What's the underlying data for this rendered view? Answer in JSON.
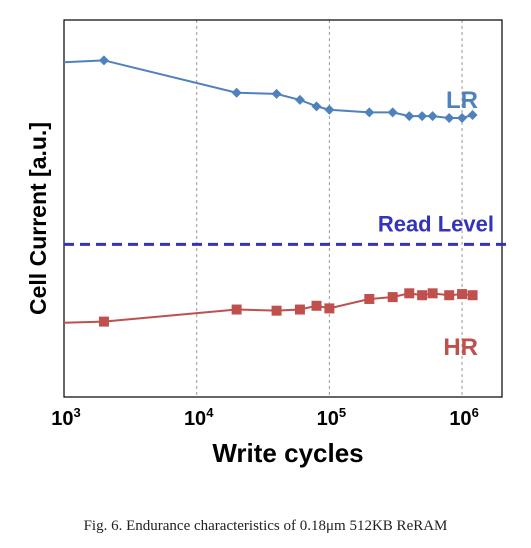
{
  "chart_data": {
    "type": "line",
    "xlabel": "Write cycles",
    "ylabel": "Cell Current [a.u.]",
    "x_scale": "log",
    "xlim": [
      1000,
      2000000
    ],
    "ylim": [
      0,
      1
    ],
    "xticks": [
      {
        "value": 1000,
        "base": "10",
        "exp": "3"
      },
      {
        "value": 10000,
        "base": "10",
        "exp": "4"
      },
      {
        "value": 100000,
        "base": "10",
        "exp": "5"
      },
      {
        "value": 1000000,
        "base": "10",
        "exp": "6"
      }
    ],
    "grid": "vertical dashed at decades",
    "series": [
      {
        "name": "LR",
        "color": "#4f81bd",
        "marker": "diamond",
        "points": [
          [
            1000,
            0.888
          ],
          [
            2000,
            0.893
          ],
          [
            20000,
            0.807
          ],
          [
            40000,
            0.804
          ],
          [
            60000,
            0.788
          ],
          [
            80000,
            0.771
          ],
          [
            100000,
            0.762
          ],
          [
            200000,
            0.755
          ],
          [
            300000,
            0.755
          ],
          [
            400000,
            0.745
          ],
          [
            500000,
            0.745
          ],
          [
            600000,
            0.745
          ],
          [
            800000,
            0.74
          ],
          [
            1000000,
            0.74
          ],
          [
            1200000,
            0.748
          ]
        ]
      },
      {
        "name": "HR",
        "color": "#c0504d",
        "marker": "square",
        "points": [
          [
            1000,
            0.197
          ],
          [
            2000,
            0.2
          ],
          [
            20000,
            0.232
          ],
          [
            40000,
            0.229
          ],
          [
            60000,
            0.232
          ],
          [
            80000,
            0.242
          ],
          [
            100000,
            0.235
          ],
          [
            200000,
            0.26
          ],
          [
            300000,
            0.265
          ],
          [
            400000,
            0.275
          ],
          [
            500000,
            0.27
          ],
          [
            600000,
            0.275
          ],
          [
            800000,
            0.27
          ],
          [
            1000000,
            0.273
          ],
          [
            1200000,
            0.27
          ]
        ]
      }
    ],
    "reference_line": {
      "name": "Read Level",
      "y": 0.405,
      "color": "#3333bb",
      "style": "dashed"
    },
    "caption": "Fig. 6.  Endurance characteristics of 0.18μm 512KB ReRAM"
  }
}
